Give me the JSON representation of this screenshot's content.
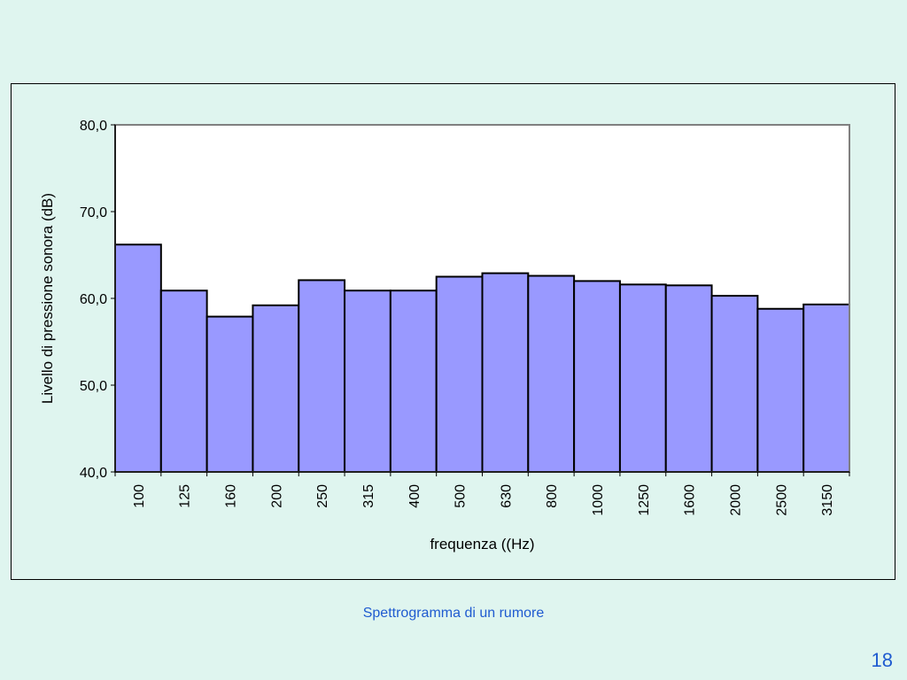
{
  "caption": "Spettrogramma di un rumore",
  "page_number": "18",
  "colors": {
    "background": "#dff5ef",
    "bar_fill": "#9999ff",
    "bar_stroke": "#000000",
    "caption_text": "#1f5bd0"
  },
  "chart_data": {
    "type": "bar",
    "title": "",
    "xlabel": "frequenza ((Hz)",
    "ylabel": "Livello di pressione sonora (dB)",
    "categories": [
      "100",
      "125",
      "160",
      "200",
      "250",
      "315",
      "400",
      "500",
      "630",
      "800",
      "1000",
      "1250",
      "1600",
      "2000",
      "2500",
      "3150"
    ],
    "values": [
      66.2,
      60.9,
      57.9,
      59.2,
      62.1,
      60.9,
      60.9,
      62.5,
      62.9,
      62.6,
      62.0,
      61.6,
      61.5,
      60.3,
      58.8,
      59.3
    ],
    "ylim": [
      40,
      80
    ],
    "yticks": [
      "40,0",
      "50,0",
      "60,0",
      "70,0",
      "80,0"
    ],
    "grid": false,
    "legend": "none"
  }
}
